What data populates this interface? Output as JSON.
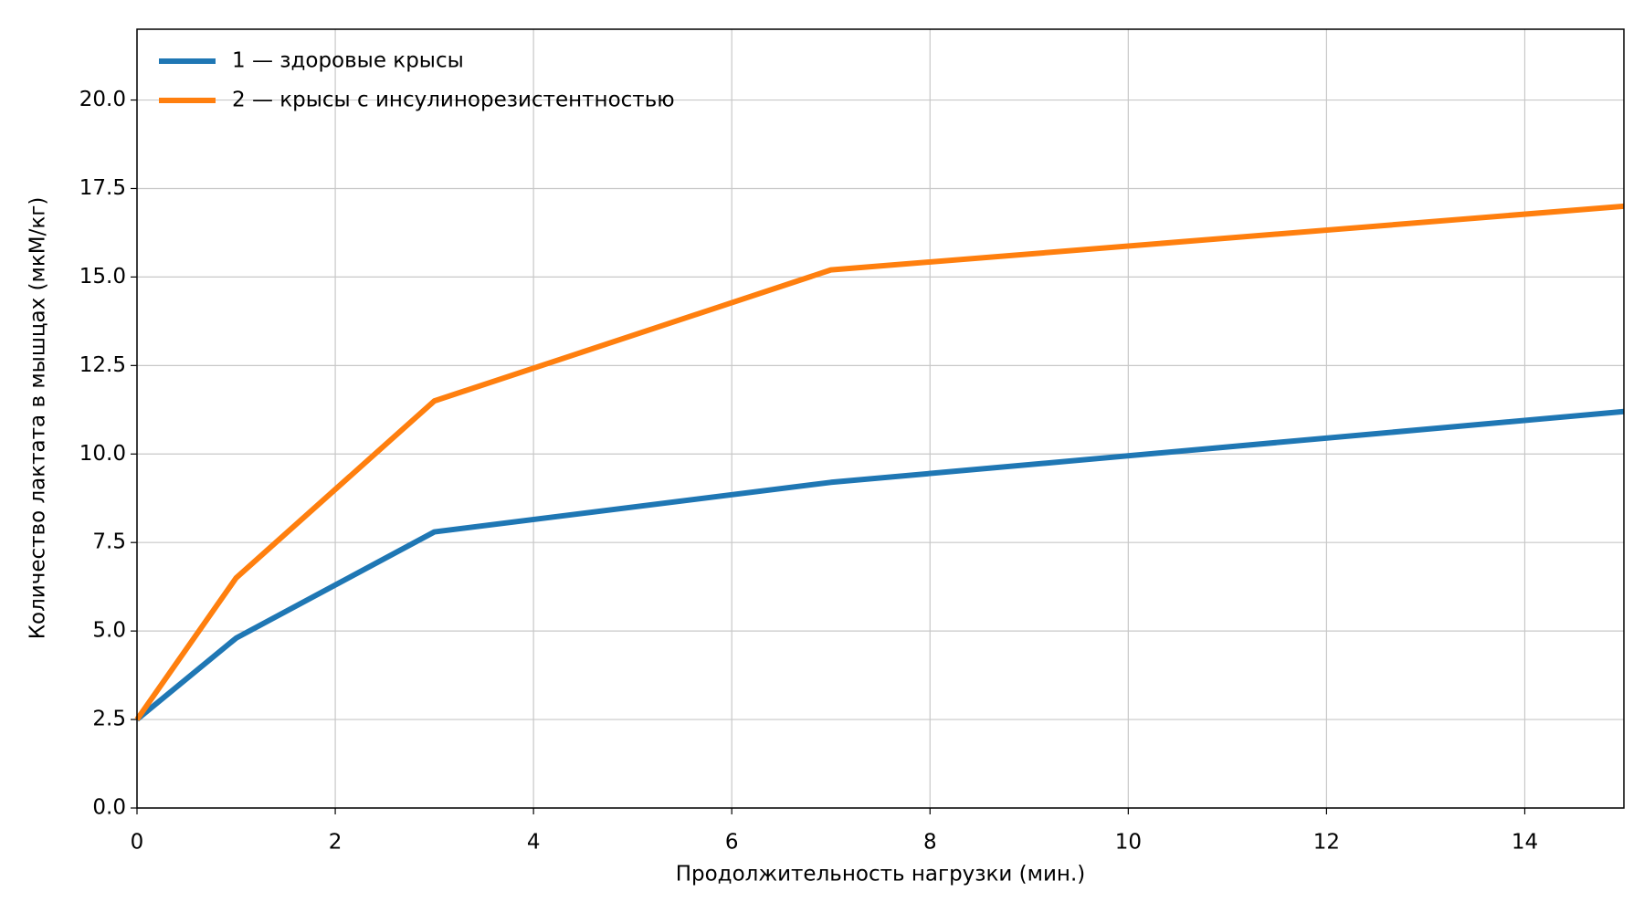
{
  "chart_data": {
    "type": "line",
    "x": [
      0,
      1,
      3,
      7,
      15
    ],
    "series": [
      {
        "name": "1 — здоровые крысы",
        "color": "#1f77b4",
        "values": [
          2.5,
          4.8,
          7.8,
          9.2,
          11.2
        ]
      },
      {
        "name": "2 — крысы с инсулинорезистентностью",
        "color": "#ff7f0e",
        "values": [
          2.5,
          6.5,
          11.5,
          15.2,
          17.0
        ]
      }
    ],
    "xlabel": "Продолжительность нагрузки (мин.)",
    "ylabel": "Количество лактата в мышцах (мкМ/кг)",
    "xlim": [
      0,
      15
    ],
    "xticks": [
      0,
      2,
      4,
      6,
      8,
      10,
      12,
      14
    ],
    "ylim": [
      0,
      22
    ],
    "yticks": [
      {
        "value": 0,
        "label": "0.0"
      },
      2.5,
      {
        "value": 5,
        "label": "5.0"
      },
      7.5,
      {
        "value": 10,
        "label": "10.0"
      },
      12.5,
      {
        "value": 15,
        "label": "15.0"
      },
      17.5,
      {
        "value": 20,
        "label": "20.0"
      }
    ],
    "grid": true,
    "legend": "upper left"
  }
}
